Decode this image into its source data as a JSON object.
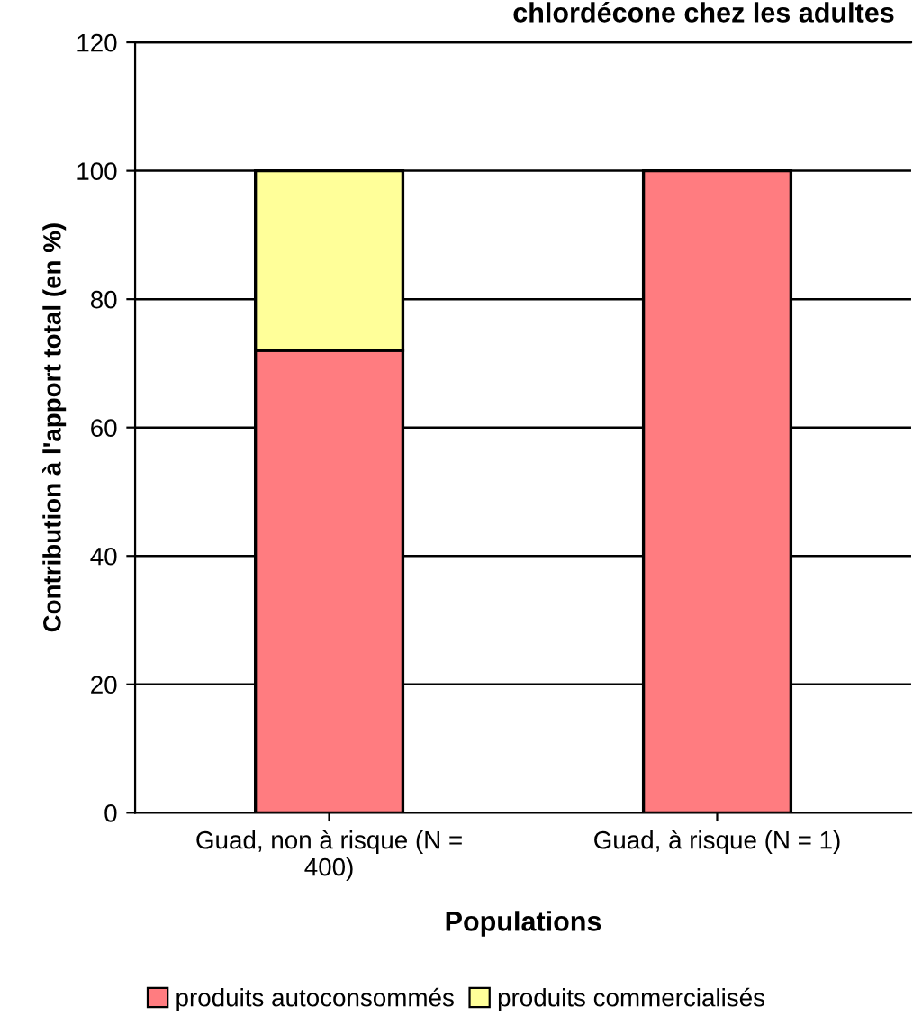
{
  "chart_data": {
    "type": "bar",
    "stacked": true,
    "title": "chlordécone chez les adultes",
    "xlabel": "Populations",
    "ylabel": "Contribution à l'apport total (en %)",
    "categories": [
      "Guad, non à risque (N =\n400)",
      "Guad, à risque (N = 1)"
    ],
    "series": [
      {
        "name": "produits autoconsommés",
        "color": "#ff7c80",
        "values": [
          72,
          100
        ]
      },
      {
        "name": "produits commercialisés",
        "color": "#ffff99",
        "values": [
          28,
          null
        ]
      }
    ],
    "ylim": [
      0,
      120
    ],
    "yticks": [
      0,
      20,
      40,
      60,
      80,
      100,
      120
    ],
    "grid": "y",
    "legend": "bottom"
  }
}
